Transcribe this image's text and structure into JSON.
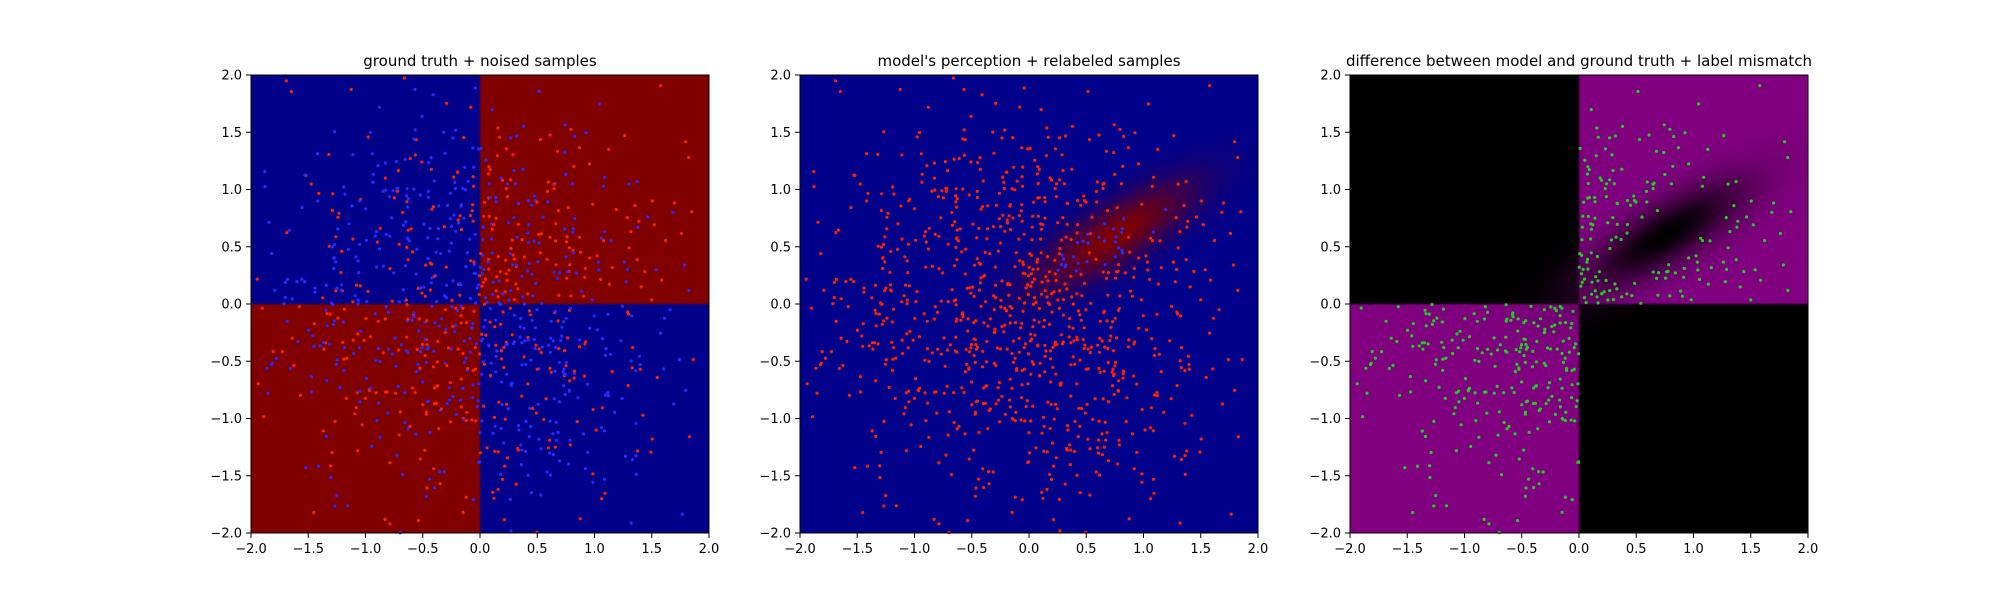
{
  "figure": {
    "background": "#ffffff"
  },
  "chart_data": [
    {
      "type": "scatter",
      "title": "ground truth + noised samples",
      "xlim": [
        -2,
        2
      ],
      "ylim": [
        -2,
        2
      ],
      "xticks": [
        "−2.0",
        "−1.5",
        "−1.0",
        "−0.5",
        "0.0",
        "0.5",
        "1.0",
        "1.5",
        "2.0"
      ],
      "yticks": [
        "−2.0",
        "−1.5",
        "−1.0",
        "−0.5",
        "0.0",
        "0.5",
        "1.0",
        "1.5",
        "2.0"
      ],
      "background_field": "xor_quadrants",
      "field_colors": {
        "positive_product": "#800000",
        "negative_product": "#00008b"
      },
      "point_colors": {
        "red": "#ff2200",
        "blue": "#2a2aff",
        "green": "#22cc22"
      },
      "points": {
        "count": 1000,
        "spread_sd": 0.9,
        "blue_fraction_in_red_region": 0.5,
        "red_fraction_in_blue_region": 0.38,
        "style": "noised_label"
      },
      "grid": false,
      "legend": "none"
    },
    {
      "type": "scatter",
      "title": "model's perception + relabeled samples",
      "xlim": [
        -2,
        2
      ],
      "ylim": [
        -2,
        2
      ],
      "xticks": [
        "−2.0",
        "−1.5",
        "−1.0",
        "−0.5",
        "0.0",
        "0.5",
        "1.0",
        "1.5",
        "2.0"
      ],
      "yticks": [
        "−2.0",
        "−1.5",
        "−1.0",
        "−0.5",
        "0.0",
        "0.5",
        "1.0",
        "1.5",
        "2.0"
      ],
      "background_field": "diagonal_blob",
      "field_colors": {
        "positive_product": "#800000",
        "negative_product": "#00008b"
      },
      "blob": {
        "center": [
          0.75,
          0.6
        ],
        "direction": [
          1,
          0.62
        ],
        "sigma_along": 0.55,
        "sigma_across": 0.17
      },
      "point_colors": {
        "red": "#ff2200",
        "blue": "#2a2aff",
        "green": "#22cc22"
      },
      "points": {
        "count": 1000,
        "spread_sd": 0.9,
        "style": "relabeled"
      },
      "grid": false,
      "legend": "none"
    },
    {
      "type": "scatter",
      "title": "difference between model and ground truth + label mismatch",
      "xlim": [
        -2,
        2
      ],
      "ylim": [
        -2,
        2
      ],
      "xticks": [
        "−2.0",
        "−1.5",
        "−1.0",
        "−0.5",
        "0.0",
        "0.5",
        "1.0",
        "1.5",
        "2.0"
      ],
      "yticks": [
        "−2.0",
        "−1.5",
        "−1.0",
        "−0.5",
        "0.0",
        "0.5",
        "1.0",
        "1.5",
        "2.0"
      ],
      "background_field": "difference",
      "field_colors": {
        "mismatch": "#800080",
        "match": "#000000"
      },
      "blob": {
        "center": [
          0.75,
          0.6
        ],
        "direction": [
          1,
          0.62
        ],
        "sigma_along": 0.55,
        "sigma_across": 0.17
      },
      "point_colors": {
        "red": "#ff2200",
        "blue": "#2a2aff",
        "green": "#22cc22"
      },
      "points": {
        "count": 1000,
        "spread_sd": 0.9,
        "style": "mismatch"
      },
      "grid": false,
      "legend": "none"
    }
  ]
}
